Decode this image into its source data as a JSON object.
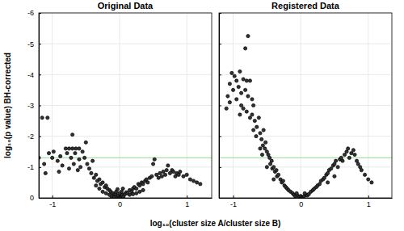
{
  "chart_data": [
    {
      "type": "scatter",
      "title": "Original Data",
      "x_label": "log₁₀(cluster size A/cluster size B)",
      "y_label": "log₁₀(p value) BH-corrected",
      "x": [
        -1.15,
        -1.07,
        -1.2,
        -1.12,
        -1.05,
        -1.0,
        -0.98,
        -0.92,
        -0.88,
        -0.85,
        -0.8,
        -0.75,
        -0.7,
        -0.65,
        -0.6,
        -0.7,
        -0.78,
        -0.72,
        -0.66,
        -0.6,
        -0.55,
        -0.5,
        -0.52,
        -0.48,
        -0.58,
        -0.62,
        -0.68,
        -0.75,
        -0.45,
        -0.42,
        -0.4,
        -0.38,
        -0.35,
        -0.33,
        -0.3,
        -0.28,
        -0.25,
        -0.22,
        -0.2,
        -0.18,
        -0.15,
        -0.13,
        -0.1,
        -0.08,
        -0.06,
        -0.04,
        -0.02,
        0.0,
        0.02,
        0.04,
        -0.12,
        -0.08,
        -0.05,
        0.0,
        0.03,
        0.06,
        0.08,
        0.1,
        -0.03,
        0.05,
        0.12,
        0.15,
        0.18,
        0.2,
        0.22,
        0.25,
        0.28,
        0.3,
        0.33,
        0.35,
        0.38,
        0.4,
        0.42,
        0.45,
        0.48,
        0.5,
        0.52,
        0.55,
        0.58,
        0.6,
        0.63,
        0.65,
        0.68,
        0.7,
        0.72,
        0.75,
        0.78,
        0.8,
        0.83,
        0.85,
        0.88,
        0.9,
        0.95,
        1.0,
        1.05,
        1.1,
        1.15,
        1.2,
        -0.9,
        -1.1,
        -0.3,
        -0.25,
        -0.2,
        -0.15,
        0.15,
        0.2,
        0.25,
        0.3,
        0.35,
        -0.35
      ],
      "values": [
        -2.6,
        -2.6,
        -1.3,
        -1.1,
        -1.45,
        -1.3,
        -1.5,
        -1.2,
        -1.35,
        -1.05,
        -1.6,
        -1.6,
        -1.6,
        -1.6,
        -1.6,
        -2.05,
        -1.45,
        -1.3,
        -1.45,
        -1.25,
        -1.5,
        -1.8,
        -1.3,
        -1.1,
        -1.0,
        -0.9,
        -1.1,
        -0.95,
        -0.95,
        -0.8,
        -1.2,
        -0.65,
        -0.75,
        -0.55,
        -0.6,
        -0.45,
        -0.5,
        -0.35,
        -0.4,
        -0.3,
        -0.25,
        -0.2,
        -0.15,
        -0.1,
        -0.12,
        -0.05,
        -0.08,
        -0.03,
        -0.06,
        -0.1,
        -0.05,
        -0.02,
        -0.2,
        -0.15,
        -0.2,
        -0.05,
        -0.12,
        -0.18,
        -0.28,
        -0.3,
        -0.15,
        -0.25,
        -0.2,
        -0.3,
        -0.35,
        -0.3,
        -0.45,
        -0.4,
        -0.5,
        -0.45,
        -0.55,
        -0.6,
        -0.5,
        -0.65,
        -0.7,
        -1.1,
        -1.25,
        -0.75,
        -0.65,
        -0.8,
        -0.7,
        -0.85,
        -0.75,
        -0.9,
        -1.05,
        -0.8,
        -0.9,
        -0.85,
        -0.7,
        -0.8,
        -0.75,
        -0.85,
        -0.7,
        -0.75,
        -0.6,
        -0.55,
        -0.5,
        -0.45,
        -0.85,
        -0.8,
        -0.3,
        -0.2,
        -0.15,
        -0.1,
        -0.1,
        -0.12,
        -0.15,
        -0.2,
        -0.25,
        -0.4
      ],
      "color": "#000000",
      "marker": "circle",
      "xlim": [
        -1.2,
        1.37
      ],
      "ylim": [
        0,
        -6
      ],
      "xticks": [
        -1,
        0,
        1
      ],
      "yticks": [
        0,
        -1,
        -2,
        -3,
        -4,
        -5,
        -6
      ],
      "grid": true,
      "hline": {
        "value": -1.3,
        "color": "#8fe08f"
      }
    },
    {
      "type": "scatter",
      "title": "Registered Data",
      "x": [
        -0.78,
        -0.82,
        -1.02,
        -0.98,
        -0.9,
        -0.85,
        -0.8,
        -0.75,
        -0.95,
        -1.05,
        -1.08,
        -1.05,
        -1.1,
        -1.0,
        -0.92,
        -0.88,
        -0.82,
        -0.78,
        -0.72,
        -0.7,
        -0.95,
        -0.9,
        -0.85,
        -0.8,
        -0.75,
        -0.72,
        -0.68,
        -0.65,
        -0.62,
        -0.7,
        -0.66,
        -0.6,
        -0.58,
        -0.56,
        -0.55,
        -0.53,
        -0.5,
        -0.52,
        -0.48,
        -0.46,
        -0.6,
        -0.57,
        -0.45,
        -0.43,
        -0.42,
        -0.4,
        -0.38,
        -0.36,
        -0.35,
        -0.33,
        -0.3,
        -0.28,
        -0.26,
        -0.24,
        -0.22,
        -0.2,
        -0.18,
        -0.15,
        -0.12,
        -0.1,
        -0.08,
        -0.05,
        -0.02,
        0.0,
        0.03,
        0.05,
        0.08,
        0.1,
        -0.06,
        0.06,
        0.12,
        0.15,
        0.18,
        0.2,
        0.23,
        0.25,
        0.28,
        0.3,
        0.33,
        0.35,
        0.38,
        0.4,
        0.42,
        0.45,
        0.48,
        0.5,
        0.52,
        0.55,
        0.58,
        0.6,
        0.62,
        0.65,
        0.68,
        0.7,
        0.72,
        0.75,
        0.78,
        0.8,
        0.83,
        0.85,
        0.88,
        0.9,
        0.95,
        1.0,
        1.05,
        0.5,
        0.4,
        -0.5,
        -0.4,
        -0.88
      ],
      "values": [
        -5.25,
        -4.85,
        -4.05,
        -3.95,
        -4.1,
        -3.85,
        -3.8,
        -3.8,
        -3.8,
        -3.7,
        -3.3,
        -3.1,
        -2.9,
        -3.5,
        -3.6,
        -3.4,
        -3.5,
        -3.3,
        -3.2,
        -3.0,
        -3.2,
        -2.7,
        -2.9,
        -2.8,
        -2.6,
        -2.7,
        -2.5,
        -2.3,
        -2.6,
        -2.2,
        -2.0,
        -2.1,
        -1.9,
        -1.7,
        -2.2,
        -1.6,
        -1.5,
        -1.8,
        -1.4,
        -1.3,
        -1.6,
        -1.4,
        -1.1,
        -1.2,
        -0.95,
        -1.0,
        -0.85,
        -0.9,
        -0.7,
        -0.75,
        -0.6,
        -0.5,
        -0.55,
        -0.4,
        -0.35,
        -0.3,
        -0.25,
        -0.2,
        -0.15,
        -0.1,
        -0.05,
        -0.08,
        -0.03,
        -0.06,
        -0.02,
        -0.05,
        -0.1,
        -0.08,
        -0.15,
        -0.15,
        -0.12,
        -0.2,
        -0.25,
        -0.3,
        -0.35,
        -0.4,
        -0.45,
        -0.55,
        -0.6,
        -0.65,
        -0.75,
        -0.8,
        -0.9,
        -0.95,
        -1.05,
        -1.1,
        -1.2,
        -1.0,
        -1.25,
        -1.3,
        -1.2,
        -1.4,
        -1.5,
        -1.6,
        -1.3,
        -1.45,
        -1.55,
        -1.4,
        -1.2,
        -1.1,
        -1.0,
        -0.9,
        -0.75,
        -0.6,
        -0.5,
        -0.7,
        -0.5,
        -1.0,
        -0.6,
        -3.0
      ],
      "color": "#000000",
      "marker": "circle",
      "xlim": [
        -1.21,
        1.35
      ],
      "ylim": [
        0,
        -6
      ],
      "xticks": [
        -1,
        0,
        1
      ],
      "yticks": [
        0,
        -1,
        -2,
        -3,
        -4,
        -5,
        -6
      ],
      "grid": true,
      "tick_labels": "x",
      "hline": {
        "value": -1.3,
        "color": "#8fe08f"
      }
    }
  ]
}
